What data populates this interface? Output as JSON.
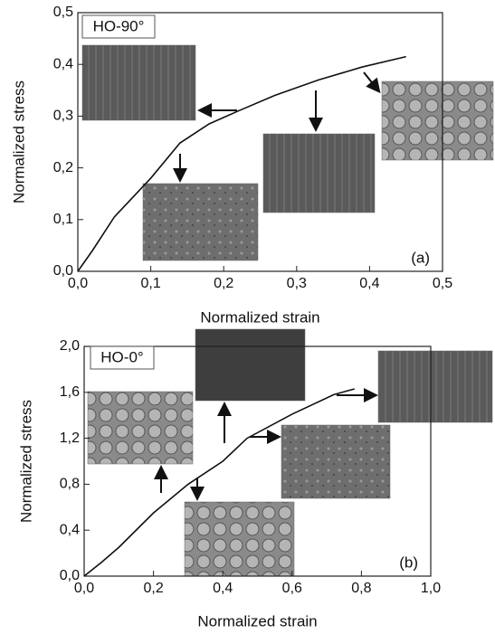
{
  "chart_data": [
    {
      "type": "line",
      "panel_label": "(a)",
      "annotation": "HO-90°",
      "x_label": "Normalized strain",
      "y_label": "Normalized stress",
      "x": [
        0,
        0.02,
        0.05,
        0.1,
        0.14,
        0.18,
        0.22,
        0.27,
        0.33,
        0.39,
        0.45
      ],
      "values": [
        0,
        0.04,
        0.105,
        0.18,
        0.248,
        0.285,
        0.31,
        0.34,
        0.37,
        0.395,
        0.415
      ],
      "color": "#111111",
      "xlim": [
        0,
        0.5
      ],
      "ylim": [
        0,
        0.5
      ],
      "xticks": [
        {
          "value": 0,
          "label": "0,0"
        },
        {
          "value": 0.1,
          "label": "0,1"
        },
        {
          "value": 0.2,
          "label": "0,2"
        },
        {
          "value": 0.3,
          "label": "0,3"
        },
        {
          "value": 0.4,
          "label": "0,4"
        },
        {
          "value": 0.5,
          "label": "0,5"
        }
      ],
      "yticks": [
        {
          "value": 0,
          "label": "0,0"
        },
        {
          "value": 0.1,
          "label": "0,1"
        },
        {
          "value": 0.2,
          "label": "0,2"
        },
        {
          "value": 0.3,
          "label": "0,3"
        },
        {
          "value": 0.4,
          "label": "0,4"
        },
        {
          "value": 0.5,
          "label": "0,5"
        }
      ]
    },
    {
      "type": "line",
      "panel_label": "(b)",
      "annotation": "HO-0°",
      "x_label": "Normalized strain",
      "y_label": "Normalized stress",
      "x": [
        0,
        0.05,
        0.1,
        0.2,
        0.3,
        0.4,
        0.47,
        0.6,
        0.72,
        0.78
      ],
      "values": [
        0,
        0.12,
        0.25,
        0.55,
        0.8,
        1.0,
        1.2,
        1.41,
        1.58,
        1.63
      ],
      "color": "#111111",
      "xlim": [
        0,
        1.0
      ],
      "ylim": [
        0,
        2.0
      ],
      "xticks": [
        {
          "value": 0,
          "label": "0,0"
        },
        {
          "value": 0.2,
          "label": "0,2"
        },
        {
          "value": 0.4,
          "label": "0,4"
        },
        {
          "value": 0.6,
          "label": "0,6"
        },
        {
          "value": 0.8,
          "label": "0,8"
        },
        {
          "value": 1.0,
          "label": "1,0"
        }
      ],
      "yticks": [
        {
          "value": 0,
          "label": "0,0"
        },
        {
          "value": 0.4,
          "label": "0,4"
        },
        {
          "value": 0.8,
          "label": "0,8"
        },
        {
          "value": 1.2,
          "label": "1,2"
        },
        {
          "value": 1.6,
          "label": "1,6"
        },
        {
          "value": 2.0,
          "label": "2,0"
        }
      ]
    }
  ]
}
